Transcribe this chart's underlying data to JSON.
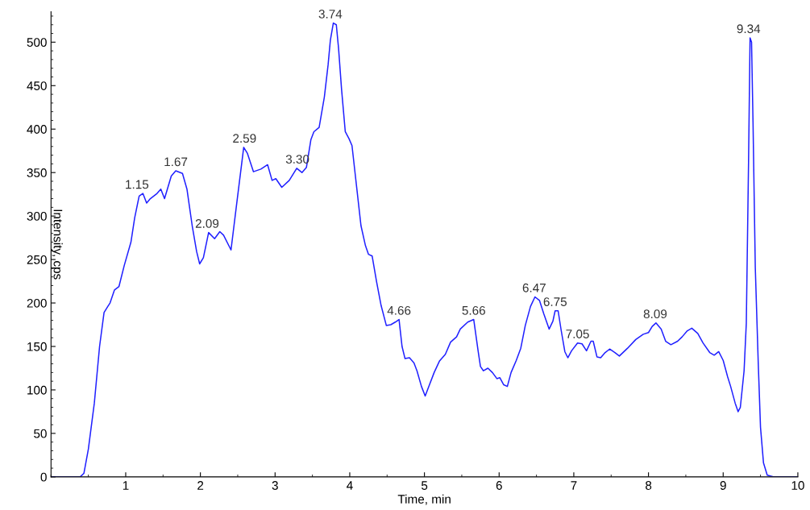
{
  "chart_data": {
    "type": "line",
    "xlabel": "Time, min",
    "ylabel": "Intensity, cps",
    "xlim": [
      0,
      10
    ],
    "xticks": [
      1,
      2,
      3,
      4,
      5,
      6,
      7,
      8,
      9,
      10
    ],
    "ylim": [
      0,
      535
    ],
    "yticks": [
      0,
      50,
      100,
      150,
      200,
      250,
      300,
      350,
      400,
      450,
      500
    ],
    "grid": false,
    "legend": false,
    "marker": "none",
    "line_style": "solid",
    "series": [
      {
        "color": "#2020ff",
        "x": [
          0.0,
          0.39,
          0.44,
          0.5,
          0.58,
          0.65,
          0.71,
          0.76,
          0.79,
          0.85,
          0.91,
          0.98,
          1.07,
          1.12,
          1.18,
          1.23,
          1.28,
          1.33,
          1.42,
          1.47,
          1.52,
          1.61,
          1.67,
          1.76,
          1.82,
          1.89,
          1.95,
          1.99,
          2.04,
          2.11,
          2.19,
          2.26,
          2.31,
          2.41,
          2.49,
          2.58,
          2.63,
          2.71,
          2.81,
          2.9,
          2.96,
          3.01,
          3.09,
          3.19,
          3.29,
          3.36,
          3.42,
          3.48,
          3.52,
          3.59,
          3.66,
          3.71,
          3.74,
          3.78,
          3.82,
          3.85,
          3.89,
          3.94,
          3.99,
          4.03,
          4.09,
          4.15,
          4.21,
          4.25,
          4.3,
          4.36,
          4.42,
          4.49,
          4.55,
          4.61,
          4.66,
          4.7,
          4.74,
          4.8,
          4.86,
          4.9,
          4.96,
          5.01,
          5.05,
          5.13,
          5.2,
          5.28,
          5.35,
          5.43,
          5.48,
          5.58,
          5.66,
          5.72,
          5.75,
          5.79,
          5.85,
          5.91,
          5.97,
          6.01,
          6.06,
          6.11,
          6.16,
          6.23,
          6.26,
          6.29,
          6.35,
          6.42,
          6.48,
          6.54,
          6.6,
          6.67,
          6.72,
          6.75,
          6.79,
          6.83,
          6.88,
          6.92,
          6.97,
          7.05,
          7.11,
          7.17,
          7.23,
          7.26,
          7.31,
          7.36,
          7.42,
          7.48,
          7.55,
          7.61,
          7.72,
          7.83,
          7.93,
          8.0,
          8.05,
          8.1,
          8.17,
          8.23,
          8.3,
          8.39,
          8.45,
          8.52,
          8.58,
          8.66,
          8.73,
          8.82,
          8.88,
          8.94,
          9.0,
          9.06,
          9.1,
          9.16,
          9.2,
          9.23,
          9.28,
          9.31,
          9.34,
          9.36,
          9.38,
          9.4,
          9.43,
          9.47,
          9.5,
          9.54,
          9.59,
          9.67,
          9.99
        ],
        "values": [
          0,
          0,
          4,
          32,
          85,
          150,
          189,
          196,
          200,
          215,
          219,
          243,
          270,
          298,
          323,
          326,
          315,
          320,
          326,
          331,
          320,
          346,
          352,
          349,
          331,
          289,
          259,
          245,
          252,
          281,
          274,
          282,
          278,
          261,
          317,
          379,
          372,
          351,
          354,
          359,
          341,
          343,
          333,
          341,
          355,
          350,
          356,
          388,
          397,
          402,
          437,
          474,
          502,
          522,
          520,
          493,
          446,
          397,
          389,
          381,
          335,
          289,
          266,
          256,
          254,
          224,
          197,
          174,
          175,
          178,
          181,
          150,
          136,
          137,
          131,
          122,
          104,
          93,
          102,
          120,
          133,
          141,
          155,
          161,
          170,
          178,
          181,
          144,
          127,
          122,
          125,
          120,
          113,
          114,
          106,
          104,
          120,
          134,
          141,
          148,
          174,
          196,
          207,
          203,
          187,
          170,
          179,
          191,
          191,
          169,
          144,
          137,
          145,
          154,
          153,
          145,
          156,
          156,
          138,
          137,
          143,
          147,
          143,
          139,
          148,
          158,
          164,
          166,
          173,
          177,
          170,
          156,
          152,
          156,
          161,
          168,
          171,
          165,
          154,
          143,
          140,
          144,
          134,
          115,
          104,
          85,
          75,
          80,
          122,
          177,
          363,
          505,
          500,
          407,
          241,
          130,
          57,
          16,
          2,
          0,
          0
        ]
      }
    ],
    "annotations": [
      {
        "text": "1.15",
        "x": 1.15,
        "y": 326
      },
      {
        "text": "1.67",
        "x": 1.67,
        "y": 352
      },
      {
        "text": "2.09",
        "x": 2.09,
        "y": 281
      },
      {
        "text": "2.59",
        "x": 2.59,
        "y": 379
      },
      {
        "text": "3.30",
        "x": 3.3,
        "y": 355
      },
      {
        "text": "3.74",
        "x": 3.74,
        "y": 522
      },
      {
        "text": "4.66",
        "x": 4.66,
        "y": 181
      },
      {
        "text": "5.66",
        "x": 5.66,
        "y": 181
      },
      {
        "text": "6.47",
        "x": 6.47,
        "y": 207
      },
      {
        "text": "6.75",
        "x": 6.75,
        "y": 191
      },
      {
        "text": "7.05",
        "x": 7.05,
        "y": 154
      },
      {
        "text": "8.09",
        "x": 8.09,
        "y": 177
      },
      {
        "text": "9.34",
        "x": 9.34,
        "y": 505
      }
    ]
  }
}
